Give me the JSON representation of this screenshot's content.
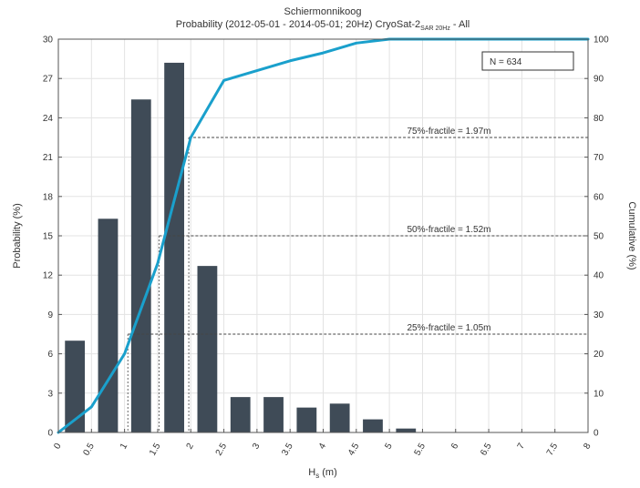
{
  "chart_data": {
    "type": "bar",
    "title": "Schiermonnikoog",
    "subtitle_main": "Probability (2012-05-01 - 2014-05-01; 20Hz) CryoSat-2",
    "subtitle_sub": "SAR 20Hz",
    "subtitle_tail": " - All",
    "xlabel_main": "H",
    "xlabel_sub": "s",
    "xlabel_tail": " (m)",
    "ylabel_left": "Probability (%)",
    "ylabel_right": "Cumulative (%)",
    "xlim": [
      0,
      8
    ],
    "ylim_left": [
      0,
      30
    ],
    "ylim_right": [
      0,
      100
    ],
    "x_ticks": [
      "0",
      "0.5",
      "1",
      "1.5",
      "2",
      "2.5",
      "3",
      "3.5",
      "4",
      "4.5",
      "5",
      "5.5",
      "6",
      "6.5",
      "7",
      "7.5",
      "8"
    ],
    "y_ticks_left": [
      "0",
      "3",
      "6",
      "9",
      "12",
      "15",
      "18",
      "21",
      "24",
      "27",
      "30"
    ],
    "y_ticks_right": [
      "0",
      "10",
      "20",
      "30",
      "40",
      "50",
      "60",
      "70",
      "80",
      "90",
      "100"
    ],
    "grid": true,
    "bar_width": 0.3,
    "bars": {
      "x": [
        0.25,
        0.75,
        1.25,
        1.75,
        2.25,
        2.75,
        3.25,
        3.75,
        4.25,
        4.75,
        5.25
      ],
      "values": [
        7.0,
        16.3,
        25.4,
        28.2,
        12.7,
        2.7,
        2.7,
        1.9,
        2.2,
        1.0,
        0.3
      ],
      "color": "#3f4b57"
    },
    "cumulative": {
      "x": [
        0,
        0.5,
        1,
        1.5,
        2,
        2.5,
        3,
        3.5,
        4,
        4.5,
        5,
        5.5,
        8
      ],
      "values": [
        0,
        6.5,
        20,
        43,
        75,
        89.5,
        92,
        94.5,
        96.5,
        99,
        100,
        100,
        100
      ],
      "color": "#1aa0cc"
    },
    "fractiles": [
      {
        "label": "75%-fractile = 1.97m",
        "x": 1.97,
        "cum": 75
      },
      {
        "label": "50%-fractile = 1.52m",
        "x": 1.52,
        "cum": 50
      },
      {
        "label": "25%-fractile = 1.05m",
        "x": 1.05,
        "cum": 25
      }
    ],
    "n_label": "N = 634",
    "legend_position": "top-right"
  }
}
